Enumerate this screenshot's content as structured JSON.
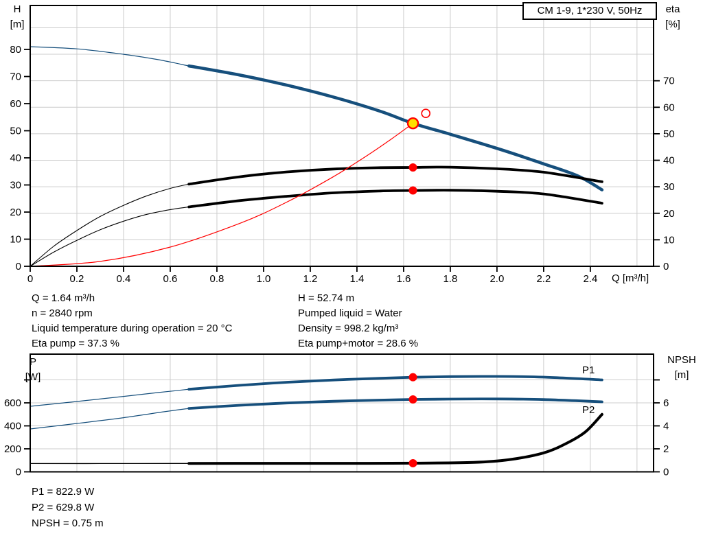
{
  "title_box": "CM 1-9, 1*230 V, 50Hz",
  "colors": {
    "curve_navy": "#164f7c",
    "curve_black": "#000000",
    "curve_red": "#ff0000",
    "duty_yellow": "#ffe000",
    "grid": "#cccccc",
    "axis": "#000000",
    "p_label_blue": "#2a6ebb"
  },
  "info": {
    "left": [
      "Q = 1.64 m³/h",
      "n = 2840 rpm",
      "Liquid temperature during operation = 20 °C",
      "Eta pump = 37.3 %"
    ],
    "right": [
      "H = 52.74 m",
      "Pumped liquid = Water",
      "Density = 998.2 kg/m³",
      "Eta pump+motor = 28.6 %"
    ],
    "bottom": [
      "P1 = 822.9 W",
      "P2 = 629.8 W",
      "NPSH = 0.75 m"
    ]
  },
  "chart_data": [
    {
      "id": "hq",
      "type": "line",
      "title": "CM 1-9, 1*230 V, 50Hz",
      "xlabel": "Q [m³/h]",
      "ylabel_left_lines": [
        "H",
        "[m]"
      ],
      "ylabel_right_lines": [
        "eta",
        "[%]"
      ],
      "x_axis": {
        "range": [
          0,
          2.671
        ],
        "tick_values": [
          0,
          0.2,
          0.4,
          0.6,
          0.8,
          1.0,
          1.2,
          1.4,
          1.6,
          1.8,
          2.0,
          2.2,
          2.4
        ],
        "tick_labels": [
          "0",
          "0.2",
          "0.4",
          "0.6",
          "0.8",
          "1.0",
          "1.2",
          "1.4",
          "1.6",
          "1.8",
          "2.0",
          "2.2",
          "2.4"
        ],
        "grid": [
          0.2,
          0.4,
          0.6,
          0.8,
          1.0,
          1.2,
          1.4,
          1.6,
          1.8,
          2.0,
          2.2,
          2.4,
          2.6
        ]
      },
      "y_left": {
        "range": [
          0,
          96.2
        ],
        "tick_values": [
          0,
          10,
          20,
          30,
          40,
          50,
          60,
          70,
          80
        ],
        "tick_labels": [
          "0",
          "10",
          "20",
          "30",
          "40",
          "50",
          "60",
          "70",
          "80"
        ],
        "grid": []
      },
      "y_right": {
        "range": [
          0,
          98.4
        ],
        "tick_values": [
          0,
          10,
          20,
          30,
          40,
          50,
          60,
          70
        ],
        "tick_labels": [
          "0",
          "10",
          "20",
          "30",
          "40",
          "50",
          "60",
          "70"
        ],
        "grid": [
          10,
          20,
          30,
          40,
          50,
          60,
          70,
          80,
          90
        ]
      },
      "series": [
        {
          "name": "h-curve-low-range",
          "axis": "left",
          "color": "#164f7c",
          "width": 1.2,
          "points": [
            [
              0,
              81
            ],
            [
              0.2,
              80.2
            ],
            [
              0.4,
              78.2
            ],
            [
              0.55,
              76.2
            ],
            [
              0.68,
              73.9
            ]
          ]
        },
        {
          "name": "h-curve",
          "axis": "left",
          "color": "#164f7c",
          "width": 4.5,
          "points": [
            [
              0.68,
              73.9
            ],
            [
              0.9,
              70.5
            ],
            [
              1.1,
              66.8
            ],
            [
              1.3,
              62.4
            ],
            [
              1.5,
              57.2
            ],
            [
              1.64,
              52.74
            ],
            [
              1.8,
              48.7
            ],
            [
              2.0,
              43.5
            ],
            [
              2.2,
              37.8
            ],
            [
              2.35,
              33.2
            ],
            [
              2.45,
              28.2
            ]
          ]
        },
        {
          "name": "eta-pump-curve-low-range",
          "axis": "right",
          "color": "#000000",
          "width": 1.1,
          "points": [
            [
              0,
              0
            ],
            [
              0.1,
              7.5
            ],
            [
              0.2,
              13.5
            ],
            [
              0.3,
              18.8
            ],
            [
              0.4,
              23
            ],
            [
              0.5,
              26.6
            ],
            [
              0.6,
              29.4
            ],
            [
              0.68,
              31
            ]
          ]
        },
        {
          "name": "eta-pump-curve",
          "axis": "right",
          "color": "#000000",
          "width": 3.8,
          "points": [
            [
              0.68,
              31
            ],
            [
              0.9,
              33.8
            ],
            [
              1.1,
              35.6
            ],
            [
              1.3,
              36.7
            ],
            [
              1.5,
              37.2
            ],
            [
              1.64,
              37.3
            ],
            [
              1.8,
              37.4
            ],
            [
              2.0,
              36.8
            ],
            [
              2.2,
              35.5
            ],
            [
              2.45,
              31.9
            ]
          ]
        },
        {
          "name": "eta-pump-motor-curve-low-range",
          "axis": "right",
          "color": "#000000",
          "width": 1.1,
          "points": [
            [
              0,
              0
            ],
            [
              0.1,
              5.3
            ],
            [
              0.2,
              9.8
            ],
            [
              0.3,
              13.8
            ],
            [
              0.4,
              17
            ],
            [
              0.5,
              19.6
            ],
            [
              0.6,
              21.4
            ],
            [
              0.68,
              22.4
            ]
          ]
        },
        {
          "name": "eta-pump-motor-curve",
          "axis": "right",
          "color": "#000000",
          "width": 3.8,
          "points": [
            [
              0.68,
              22.4
            ],
            [
              0.9,
              24.8
            ],
            [
              1.1,
              26.4
            ],
            [
              1.3,
              27.7
            ],
            [
              1.5,
              28.4
            ],
            [
              1.64,
              28.6
            ],
            [
              1.8,
              28.7
            ],
            [
              2.0,
              28.3
            ],
            [
              2.2,
              27.3
            ],
            [
              2.45,
              23.8
            ]
          ]
        },
        {
          "name": "system-curve",
          "axis": "left",
          "color": "#ff0000",
          "width": 1.2,
          "points": [
            [
              0,
              0
            ],
            [
              0.3,
              1.8
            ],
            [
              0.6,
              7.1
            ],
            [
              0.9,
              15.9
            ],
            [
              1.1,
              23.7
            ],
            [
              1.3,
              33.1
            ],
            [
              1.45,
              41.2
            ],
            [
              1.55,
              47.1
            ],
            [
              1.64,
              52.74
            ]
          ]
        }
      ],
      "markers": [
        {
          "name": "duty-point",
          "axis": "left",
          "x": 1.64,
          "y": 52.74,
          "r": 7.5,
          "fill": "#ffe000",
          "stroke": "#ff0000",
          "sw": 2.4
        },
        {
          "name": "requested-duty-point",
          "axis": "left",
          "x": 1.695,
          "y": 56.4,
          "r": 6,
          "fill": "none",
          "stroke": "#ff0000",
          "sw": 1.6
        },
        {
          "name": "eta-pump-duty-point",
          "axis": "right",
          "x": 1.64,
          "y": 37.3,
          "r": 6,
          "fill": "#ff0000",
          "stroke": "none",
          "sw": 0
        },
        {
          "name": "eta-pump-motor-duty-point",
          "axis": "right",
          "x": 1.64,
          "y": 28.6,
          "r": 6,
          "fill": "#ff0000",
          "stroke": "none",
          "sw": 0
        }
      ]
    },
    {
      "id": "power",
      "type": "line",
      "xlabel": "",
      "ylabel_left_lines": [
        "P",
        "[W]"
      ],
      "ylabel_right_lines": [
        "NPSH",
        "[m]"
      ],
      "curve_labels": [
        {
          "text": "P1"
        },
        {
          "text": "P2"
        }
      ],
      "x_axis": {
        "range": [
          0,
          2.671
        ],
        "tick_values": [],
        "tick_labels": [],
        "grid": [
          0.2,
          0.4,
          0.6,
          0.8,
          1.0,
          1.2,
          1.4,
          1.6,
          1.8,
          2.0,
          2.2,
          2.4,
          2.6
        ]
      },
      "y_left": {
        "range": [
          0,
          1024
        ],
        "tick_values": [
          0,
          200,
          400,
          600,
          800
        ],
        "tick_labels": [
          "0",
          "200",
          "400",
          "600",
          ""
        ],
        "grid": [
          200,
          400,
          600,
          800
        ]
      },
      "y_right": {
        "range": [
          0,
          10.24
        ],
        "tick_values": [
          0,
          2,
          4,
          6,
          8
        ],
        "tick_labels": [
          "0",
          "2",
          "4",
          "6",
          ""
        ],
        "grid": []
      },
      "series": [
        {
          "name": "p1-curve-low-range",
          "axis": "left",
          "color": "#164f7c",
          "width": 1.2,
          "points": [
            [
              0,
              570
            ],
            [
              0.2,
              612
            ],
            [
              0.4,
              656
            ],
            [
              0.55,
              690
            ],
            [
              0.68,
              718
            ]
          ]
        },
        {
          "name": "p1-curve",
          "axis": "left",
          "color": "#164f7c",
          "width": 3.8,
          "points": [
            [
              0.68,
              718
            ],
            [
              0.9,
              753
            ],
            [
              1.1,
              779
            ],
            [
              1.3,
              799
            ],
            [
              1.5,
              814
            ],
            [
              1.64,
              822.9
            ],
            [
              1.8,
              828
            ],
            [
              2.0,
              830
            ],
            [
              2.2,
              824
            ],
            [
              2.45,
              800
            ]
          ]
        },
        {
          "name": "p2-curve-low-range",
          "axis": "left",
          "color": "#164f7c",
          "width": 1.2,
          "points": [
            [
              0,
              373
            ],
            [
              0.2,
              421
            ],
            [
              0.4,
              471
            ],
            [
              0.55,
              516
            ],
            [
              0.68,
              552
            ]
          ]
        },
        {
          "name": "p2-curve",
          "axis": "left",
          "color": "#164f7c",
          "width": 3.8,
          "points": [
            [
              0.68,
              552
            ],
            [
              0.9,
              579
            ],
            [
              1.1,
              599
            ],
            [
              1.3,
              614
            ],
            [
              1.5,
              624
            ],
            [
              1.64,
              629.8
            ],
            [
              1.8,
              633
            ],
            [
              2.0,
              634
            ],
            [
              2.2,
              629
            ],
            [
              2.45,
              609
            ]
          ]
        },
        {
          "name": "npsh-curve-low-range",
          "axis": "right",
          "color": "#000000",
          "width": 1.3,
          "points": [
            [
              0,
              0.72
            ],
            [
              0.3,
              0.72
            ],
            [
              0.68,
              0.73
            ]
          ]
        },
        {
          "name": "npsh-curve",
          "axis": "right",
          "color": "#000000",
          "width": 4,
          "points": [
            [
              0.68,
              0.73
            ],
            [
              1.0,
              0.74
            ],
            [
              1.3,
              0.74
            ],
            [
              1.64,
              0.75
            ],
            [
              1.9,
              0.82
            ],
            [
              2.05,
              1.05
            ],
            [
              2.2,
              1.65
            ],
            [
              2.3,
              2.5
            ],
            [
              2.38,
              3.5
            ],
            [
              2.45,
              5.0
            ]
          ]
        }
      ],
      "markers": [
        {
          "name": "p1-duty-point",
          "axis": "left",
          "x": 1.64,
          "y": 822.9,
          "r": 6,
          "fill": "#ff0000",
          "stroke": "none",
          "sw": 0
        },
        {
          "name": "p2-duty-point",
          "axis": "left",
          "x": 1.64,
          "y": 629.8,
          "r": 6,
          "fill": "#ff0000",
          "stroke": "none",
          "sw": 0
        },
        {
          "name": "npsh-duty-point",
          "axis": "right",
          "x": 1.64,
          "y": 0.75,
          "r": 6,
          "fill": "#ff0000",
          "stroke": "none",
          "sw": 0
        }
      ]
    }
  ]
}
